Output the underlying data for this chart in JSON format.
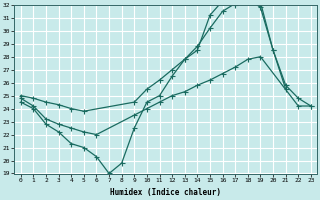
{
  "xlabel": "Humidex (Indice chaleur)",
  "xlim": [
    -0.5,
    23.5
  ],
  "ylim": [
    19,
    32
  ],
  "bg_color": "#c8eaea",
  "grid_color": "#ffffff",
  "line_color": "#1a6b60",
  "line1_x": [
    0,
    1,
    2,
    3,
    4,
    5,
    6,
    7,
    8,
    9,
    10,
    11,
    12,
    13,
    14,
    15,
    16,
    17,
    18,
    19,
    20,
    21
  ],
  "line1_y": [
    24.5,
    24.0,
    22.8,
    22.2,
    21.3,
    21.0,
    20.3,
    19.0,
    19.8,
    22.5,
    24.5,
    25.0,
    26.5,
    27.8,
    28.5,
    31.2,
    32.3,
    32.0,
    32.5,
    31.8,
    28.5,
    25.5
  ],
  "line2_x": [
    0,
    1,
    2,
    3,
    4,
    5,
    6,
    9,
    10,
    11,
    12,
    13,
    14,
    15,
    16,
    17,
    18,
    19,
    22,
    23
  ],
  "line2_y": [
    24.8,
    24.2,
    23.2,
    22.8,
    22.5,
    22.2,
    22.0,
    23.5,
    24.0,
    24.5,
    25.0,
    25.3,
    25.8,
    26.2,
    26.7,
    27.2,
    27.8,
    28.0,
    24.2,
    24.2
  ],
  "line3_x": [
    0,
    1,
    2,
    3,
    4,
    5,
    9,
    10,
    11,
    12,
    13,
    14,
    15,
    16,
    17,
    18,
    19,
    20,
    21,
    22,
    23
  ],
  "line3_y": [
    25.0,
    24.8,
    24.5,
    24.3,
    24.0,
    23.8,
    24.5,
    25.5,
    26.2,
    27.0,
    27.8,
    28.8,
    30.2,
    31.5,
    32.1,
    32.5,
    32.2,
    28.5,
    25.8,
    24.8,
    24.2
  ],
  "yticks": [
    19,
    20,
    21,
    22,
    23,
    24,
    25,
    26,
    27,
    28,
    29,
    30,
    31,
    32
  ],
  "xticks": [
    0,
    1,
    2,
    3,
    4,
    5,
    6,
    7,
    8,
    9,
    10,
    11,
    12,
    13,
    14,
    15,
    16,
    17,
    18,
    19,
    20,
    21,
    22,
    23
  ]
}
